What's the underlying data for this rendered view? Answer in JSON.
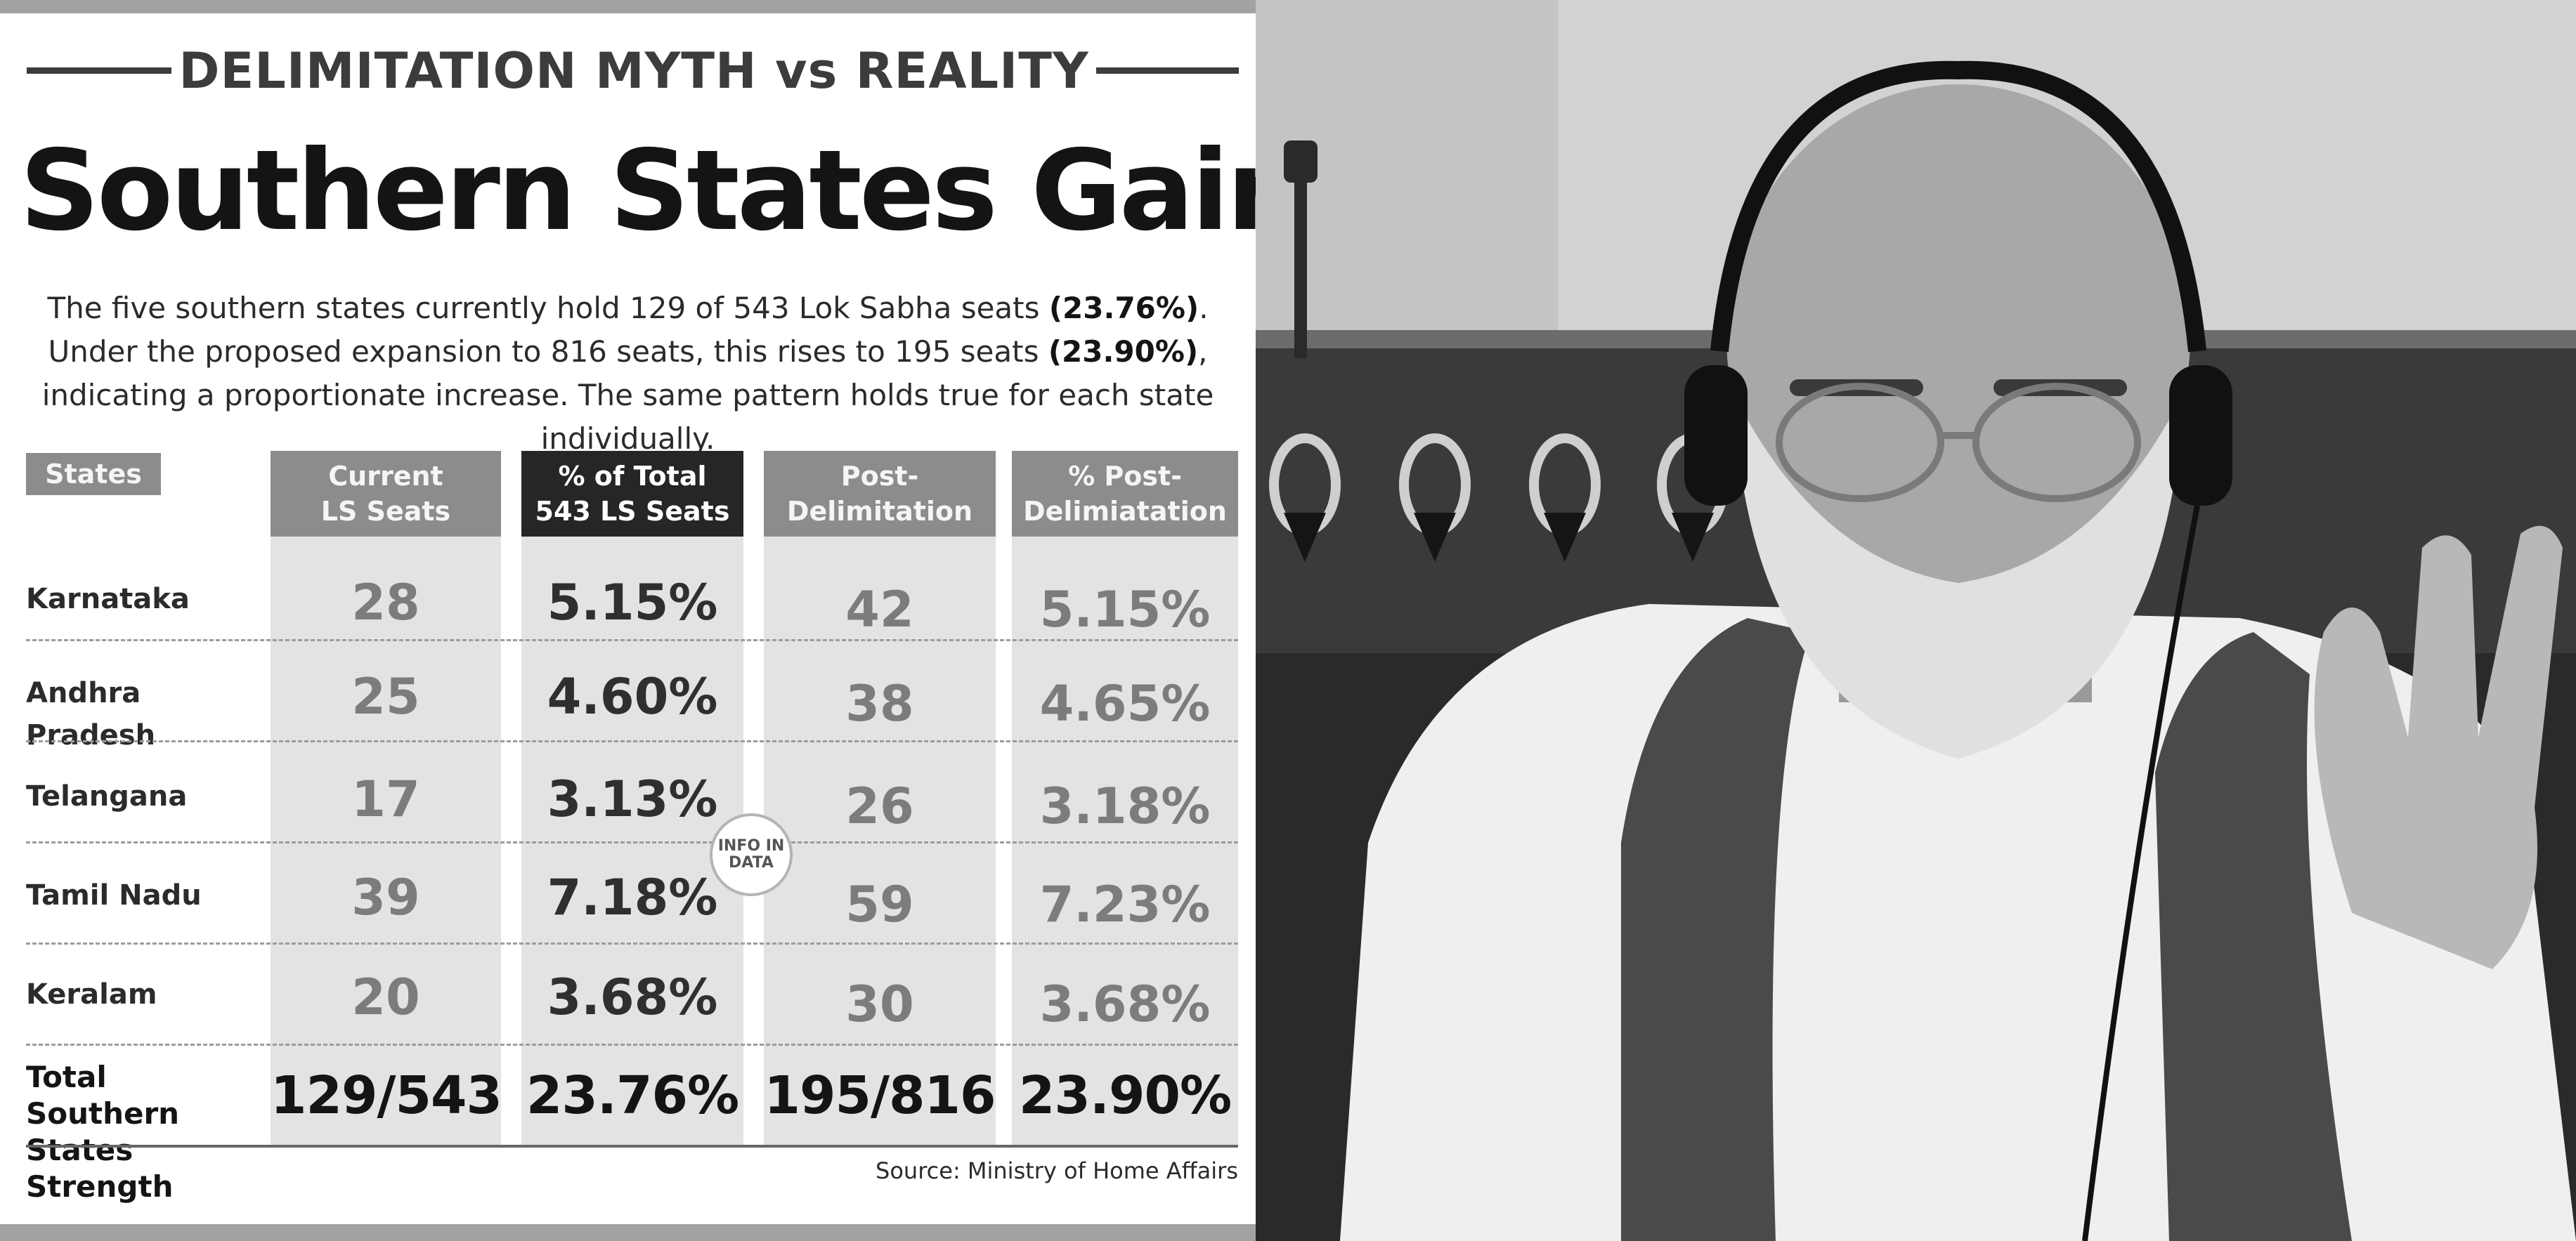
{
  "kicker": "DELIMITATION MYTH vs REALITY",
  "headline": "Southern States Gain",
  "intro": {
    "part1": "The five southern states currently hold 129 of 543 Lok Sabha seats ",
    "highlight1": "(23.76%)",
    "part2": ". Under the proposed expansion to 816 seats, this rises to 195 seats ",
    "highlight2": "(23.90%)",
    "part3": ", indicating a proportionate increase. The same pattern holds true for each state individually."
  },
  "watermark": {
    "line1": "INFO IN",
    "line2": "DATA"
  },
  "source": "Source: Ministry of Home Affairs",
  "chart_data": {
    "type": "table",
    "columns": [
      {
        "key": "state",
        "label": "States"
      },
      {
        "key": "current",
        "label": [
          "Current",
          "LS Seats"
        ]
      },
      {
        "key": "pct_total",
        "label": [
          "% of Total",
          "543 LS Seats"
        ]
      },
      {
        "key": "post",
        "label": [
          "Post-",
          "Delimitation"
        ]
      },
      {
        "key": "pct_post",
        "label": [
          "% Post-",
          "Delimiatation"
        ]
      }
    ],
    "rows": [
      {
        "state": "Karnataka",
        "current": "28",
        "pct_total": "5.15%",
        "post": "42",
        "pct_post": "5.15%"
      },
      {
        "state": "Andhra Pradesh",
        "current": "25",
        "pct_total": "4.60%",
        "post": "38",
        "pct_post": "4.65%"
      },
      {
        "state": "Telangana",
        "current": "17",
        "pct_total": "3.13%",
        "post": "26",
        "pct_post": "3.18%"
      },
      {
        "state": "Tamil Nadu",
        "current": "39",
        "pct_total": "7.18%",
        "post": "59",
        "pct_post": "7.23%"
      },
      {
        "state": "Keralam",
        "current": "20",
        "pct_total": "3.68%",
        "post": "30",
        "pct_post": "3.68%"
      }
    ],
    "total": {
      "label": [
        "Total Southern",
        "States Strength"
      ],
      "current": "129/543",
      "pct_total": "23.76%",
      "post": "195/816",
      "pct_post": "23.90%"
    }
  }
}
